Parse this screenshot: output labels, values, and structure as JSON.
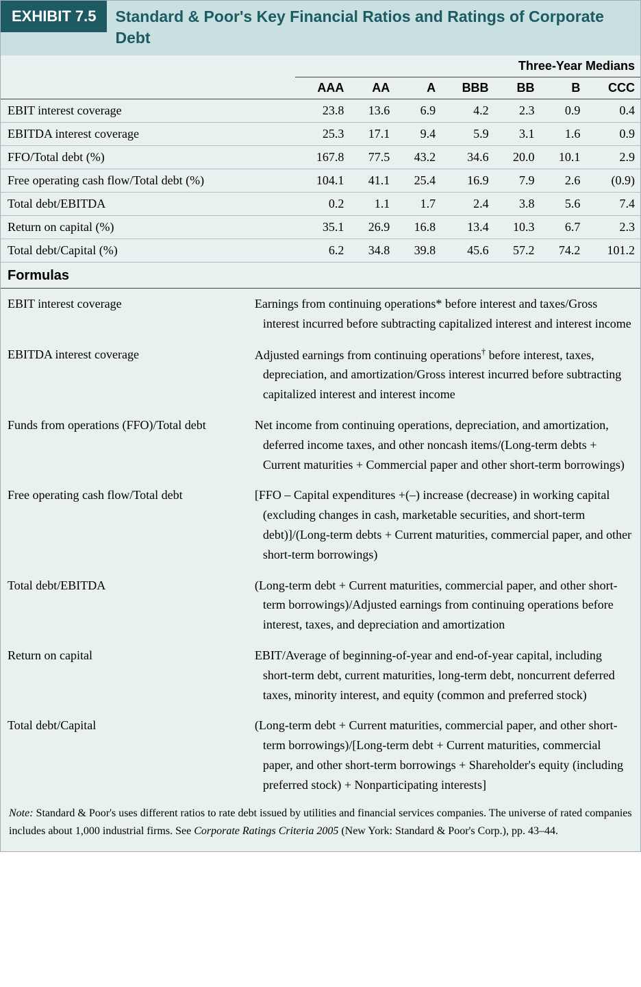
{
  "header": {
    "exhibit_label": "EXHIBIT 7.5",
    "title": "Standard & Poor's Key Financial Ratios and Ratings of Corporate Debt"
  },
  "table": {
    "super_header": "Three-Year Medians",
    "columns": [
      "AAA",
      "AA",
      "A",
      "BBB",
      "BB",
      "B",
      "CCC"
    ],
    "rows": [
      {
        "label": "EBIT interest coverage",
        "values": [
          "23.8",
          "13.6",
          "6.9",
          "4.2",
          "2.3",
          "0.9",
          "0.4"
        ]
      },
      {
        "label": "EBITDA interest coverage",
        "values": [
          "25.3",
          "17.1",
          "9.4",
          "5.9",
          "3.1",
          "1.6",
          "0.9"
        ]
      },
      {
        "label": "FFO/Total debt (%)",
        "values": [
          "167.8",
          "77.5",
          "43.2",
          "34.6",
          "20.0",
          "10.1",
          "2.9"
        ]
      },
      {
        "label": "Free operating cash flow/Total debt (%)",
        "values": [
          "104.1",
          "41.1",
          "25.4",
          "16.9",
          "7.9",
          "2.6",
          "(0.9)"
        ]
      },
      {
        "label": "Total debt/EBITDA",
        "values": [
          "0.2",
          "1.1",
          "1.7",
          "2.4",
          "3.8",
          "5.6",
          "7.4"
        ]
      },
      {
        "label": "Return on capital (%)",
        "values": [
          "35.1",
          "26.9",
          "16.8",
          "13.4",
          "10.3",
          "6.7",
          "2.3"
        ]
      },
      {
        "label": "Total debt/Capital (%)",
        "values": [
          "6.2",
          "34.8",
          "39.8",
          "45.6",
          "57.2",
          "74.2",
          "101.2"
        ]
      }
    ]
  },
  "formulas": {
    "heading": "Formulas",
    "items": [
      {
        "term": "EBIT interest coverage",
        "def_html": "Earnings from continuing operations* before interest and taxes/Gross interest incurred before subtracting capitalized interest and interest income"
      },
      {
        "term": "EBITDA interest coverage",
        "def_html": "Adjusted earnings from continuing operations<sup>†</sup> before interest, taxes, depreciation, and amortization/Gross interest incurred before subtracting capitalized interest and interest income"
      },
      {
        "term": "Funds from operations (FFO)/Total debt",
        "def_html": "Net income from continuing operations, depreciation, and amortization, deferred income taxes, and other noncash items/(Long-term debts + Current maturities + Commercial paper and other short-term borrowings)"
      },
      {
        "term": "Free operating cash flow/Total debt",
        "def_html": "[FFO – Capital expenditures +(–) increase (decrease) in working capital (excluding changes in cash, marketable securities, and short-term debt)]/(Long-term debts + Current maturities, commercial paper, and other short-term borrowings)"
      },
      {
        "term": "Total debt/EBITDA",
        "def_html": "(Long-term debt + Current maturities, commercial paper, and other short-term borrowings)/Adjusted earnings from continuing operations before interest, taxes, and depreciation and amortization"
      },
      {
        "term": "Return on capital",
        "def_html": "EBIT/Average of beginning-of-year and end-of-year capital, including short-term debt, current maturities, long-term debt, noncurrent deferred taxes, minority interest, and equity (common and preferred stock)"
      },
      {
        "term": "Total debt/Capital",
        "def_html": "(Long-term debt + Current maturities, commercial paper, and other short-term borrowings)/[Long-term debt + Current maturities, commercial paper, and other short-term borrowings + Shareholder's equity (including preferred stock) + Nonparticipating interests]"
      }
    ]
  },
  "note": {
    "label": "Note:",
    "body_before": " Standard & Poor's uses different ratios to rate debt issued by utilities and financial services companies. The universe of rated companies includes about 1,000 industrial firms. See ",
    "citation": "Corporate Ratings Criteria 2005",
    "body_after": " (New York: Standard & Poor's Corp.), pp. 43–44."
  },
  "colors": {
    "page_bg": "#e8f0f0",
    "header_bg": "#c8e0e0",
    "label_bg": "#1d5a63",
    "label_fg": "#ffffff",
    "title_fg": "#1d5a63",
    "rule": "#444444",
    "row_rule": "#b0c0c0"
  }
}
